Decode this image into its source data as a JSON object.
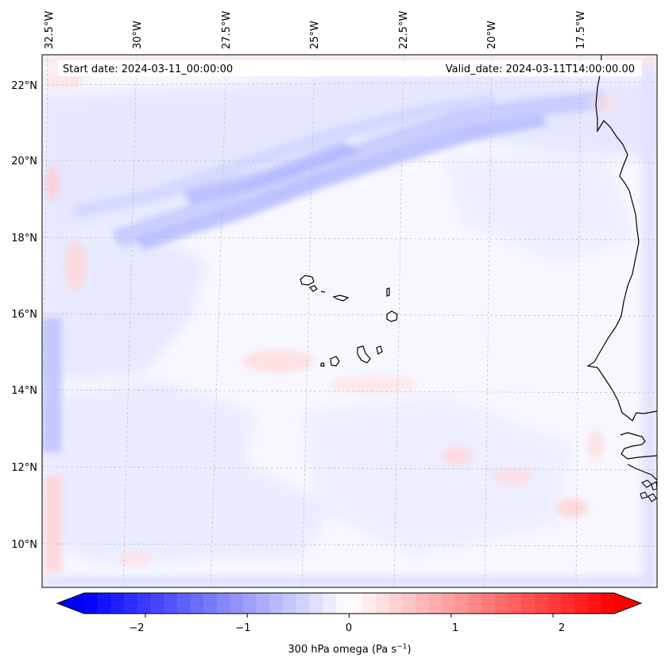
{
  "map": {
    "start_date_text": "Start date: 2024-03-11_00:00:00",
    "valid_date_text": "Valid_date: 2024-03-11T14:00:00.00",
    "lon_labels": [
      "32.5°W",
      "30°W",
      "27.5°W",
      "25°W",
      "22.5°W",
      "20°W",
      "17.5°W"
    ],
    "lat_labels": [
      "22°N",
      "20°N",
      "18°N",
      "16°N",
      "14°N",
      "12°N",
      "10°N"
    ],
    "gridlines": true,
    "background_color": "#f7f7ff",
    "coastline_color": "#000000"
  },
  "colorbar": {
    "label_main": "300 hPa omega (Pa s",
    "label_sup": "−1",
    "label_end": ")",
    "tick_labels": [
      "−2",
      "−1",
      "0",
      "1",
      "2"
    ],
    "range": [
      -2.6,
      2.6
    ],
    "colormap": "bwr",
    "low_color": "#0000ff",
    "mid_color": "#ffffff",
    "high_color": "#ff0000"
  }
}
